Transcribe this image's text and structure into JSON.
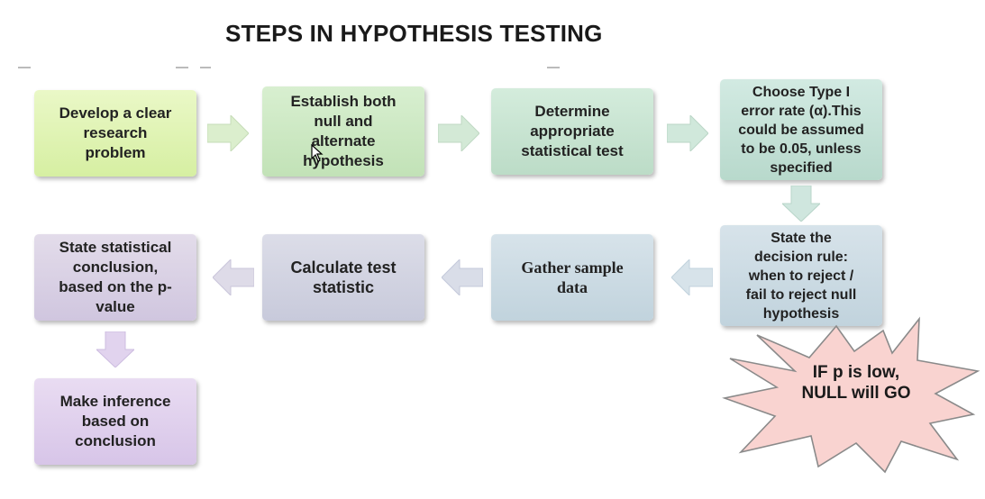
{
  "title": "STEPS IN HYPOTHESIS TESTING",
  "steps": [
    {
      "lines": [
        "Develop a clear",
        "research",
        "problem"
      ]
    },
    {
      "lines": [
        "Establish  both",
        "null and",
        "alternate",
        "hypothesis"
      ]
    },
    {
      "lines": [
        "Determine",
        "appropriate",
        "statistical  test"
      ]
    },
    {
      "lines": [
        "Choose Type I",
        "error rate (α).This",
        "could be assumed",
        "to be 0.05, unless",
        "specified"
      ]
    },
    {
      "lines": [
        "State the",
        "decision rule:",
        "when to reject /",
        "fail to reject null",
        "hypothesis"
      ]
    },
    {
      "lines": [
        "Gather sample",
        "data"
      ]
    },
    {
      "lines": [
        "Calculate test",
        "statistic"
      ]
    },
    {
      "lines": [
        "State statistical",
        "conclusion,",
        "based on the p-",
        "value"
      ]
    },
    {
      "lines": [
        "Make inference",
        "based on",
        "conclusion"
      ]
    }
  ],
  "callout": {
    "lines": [
      "IF p is low,",
      "NULL will GO"
    ]
  },
  "colors": {
    "star_fill": "#f9d3d0",
    "star_stroke": "#8a8a8a",
    "arrow_fill": "#dde9d4"
  }
}
